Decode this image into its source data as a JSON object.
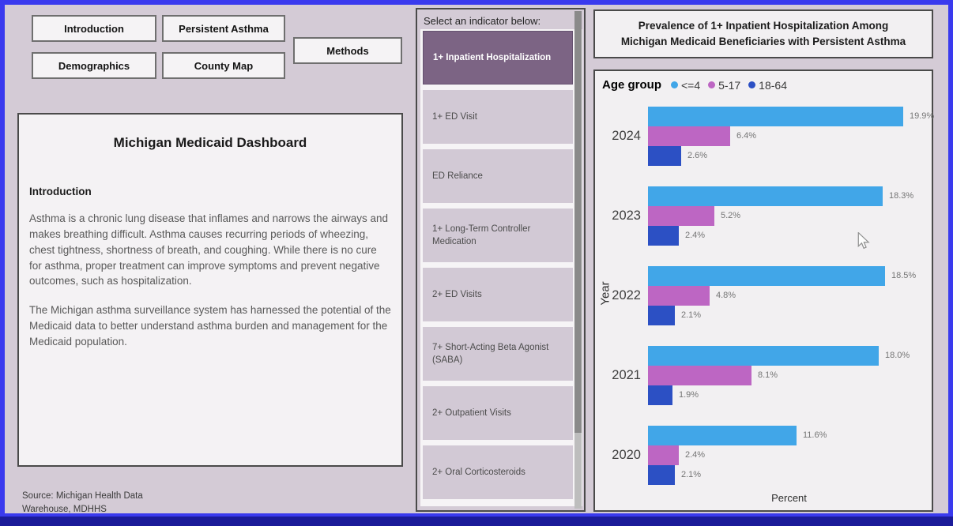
{
  "nav": {
    "buttons": [
      {
        "label": "Introduction"
      },
      {
        "label": "Persistent Asthma"
      },
      {
        "label": "Demographics"
      },
      {
        "label": "County Map"
      },
      {
        "label": "Methods"
      }
    ]
  },
  "intro_panel": {
    "title": "Michigan Medicaid Dashboard",
    "heading": "Introduction",
    "para1": "Asthma is a chronic lung disease that inflames and narrows the airways and makes breathing difficult. Asthma causes recurring periods of wheezing, chest tightness, shortness of breath, and coughing. While there is no cure for asthma, proper treatment can improve symptoms and prevent negative outcomes, such as hospitalization.",
    "para2": "The Michigan asthma surveillance system has harnessed the potential of the Medicaid data to better understand asthma burden and management for the Medicaid population."
  },
  "source_note": "Source: Michigan Health Data\nWarehouse, MDHHS",
  "indicator_panel": {
    "header": "Select an indicator below:",
    "items": [
      {
        "label": "1+ Inpatient Hospitalization",
        "selected": true
      },
      {
        "label": "1+ ED Visit",
        "selected": false
      },
      {
        "label": "ED Reliance",
        "selected": false
      },
      {
        "label": "1+ Long-Term Controller Medication",
        "selected": false
      },
      {
        "label": "2+ ED Visits",
        "selected": false
      },
      {
        "label": "7+ Short-Acting Beta Agonist (SABA)",
        "selected": false
      },
      {
        "label": "2+ Outpatient Visits",
        "selected": false
      },
      {
        "label": "2+ Oral Corticosteroids",
        "selected": false
      }
    ]
  },
  "chart_data": {
    "type": "bar",
    "orientation": "horizontal",
    "title": "Prevalence of 1+ Inpatient Hospitalization Among Michigan Medicaid Beneficiaries with Persistent Asthma",
    "legend_title": "Age group",
    "legend_position": "top",
    "categories": [
      "2024",
      "2023",
      "2022",
      "2021",
      "2020"
    ],
    "series": [
      {
        "name": "<=4",
        "color": "#41a6e8",
        "values": [
          19.9,
          18.3,
          18.5,
          18.0,
          11.6
        ]
      },
      {
        "name": "5-17",
        "color": "#bd66c3",
        "values": [
          6.4,
          5.2,
          4.8,
          8.1,
          2.4
        ]
      },
      {
        "name": "18-64",
        "color": "#2c50c4",
        "values": [
          2.6,
          2.4,
          2.1,
          1.9,
          2.1
        ]
      }
    ],
    "value_suffix": "%",
    "xlabel": "Percent",
    "ylabel": "Year",
    "xlim": [
      0,
      22
    ],
    "grid": false
  },
  "colors": {
    "page_background": "#d4cbd6",
    "page_border": "#3a3aee",
    "bottom_strip": "#1b1b99",
    "panel_background": "#f2f0f2",
    "selected_indicator": "#7c6484",
    "indicator_item": "#d2c9d5"
  }
}
